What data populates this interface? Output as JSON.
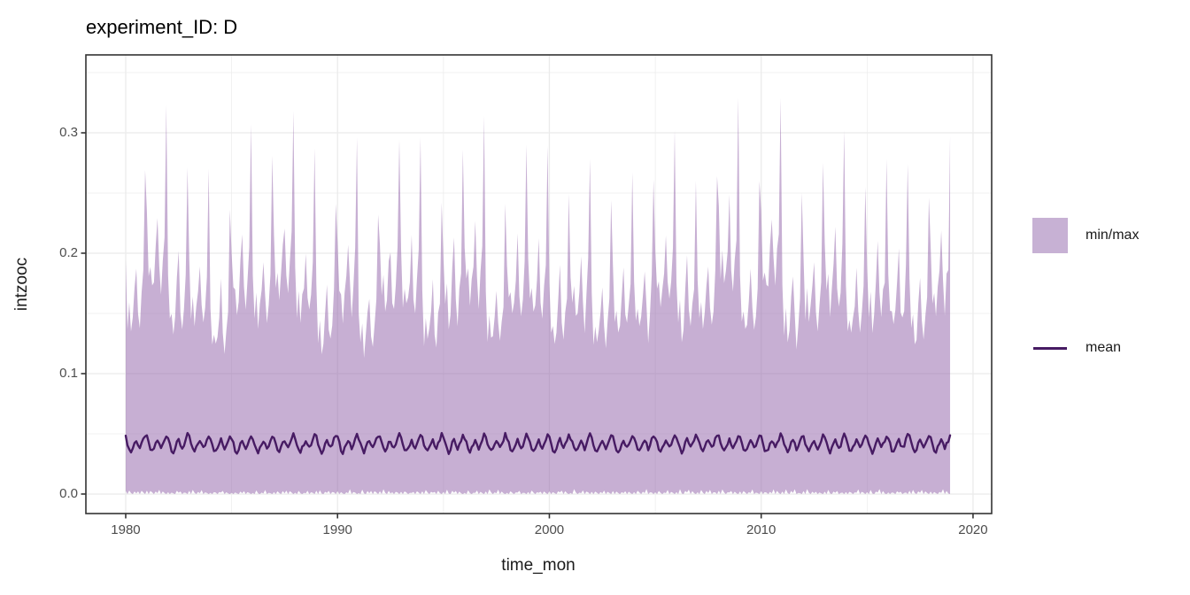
{
  "title": "experiment_ID: D",
  "x_axis": {
    "label": "time_mon"
  },
  "y_axis": {
    "label": "intzooc"
  },
  "legend": {
    "position": "right",
    "items": [
      {
        "label": "min/max",
        "type": "fill",
        "color": "#c7b1d4"
      },
      {
        "label": "mean",
        "type": "line",
        "color": "#471b63"
      }
    ]
  },
  "chart_data": {
    "type": "area",
    "subtype": "ribbon-minmax-with-mean-line",
    "title": "experiment_ID: D",
    "xlabel": "time_mon",
    "ylabel": "intzooc",
    "x_domain": [
      1978.12,
      2020.88
    ],
    "y_domain": [
      -0.0162,
      0.3647
    ],
    "grid": "on",
    "legend_position": "right",
    "x_ticks": [
      {
        "v": 1980,
        "label": "1980"
      },
      {
        "v": 1990,
        "label": "1990"
      },
      {
        "v": 2000,
        "label": "2000"
      },
      {
        "v": 2010,
        "label": "2010"
      },
      {
        "v": 2020,
        "label": "2020"
      }
    ],
    "y_ticks": [
      {
        "v": 0.0,
        "label": "0.0"
      },
      {
        "v": 0.1,
        "label": "0.1"
      },
      {
        "v": 0.2,
        "label": "0.2"
      },
      {
        "v": 0.3,
        "label": "0.3"
      }
    ],
    "x_grid_minor": [
      1985,
      1995,
      2005,
      2015
    ],
    "y_grid_minor": [
      0.05,
      0.15,
      0.25,
      0.35
    ],
    "colors": {
      "ribbon_fill_rgba": "rgba(144,96,168,0.5)",
      "ribbon_flat": "#c7b1d4",
      "mean_line": "#471b63",
      "grid": "#ebebeb",
      "panel_border": "#333333",
      "tick_text": "#4d4d4d"
    },
    "time_resolution": "monthly",
    "series": {
      "minmax": {
        "name": "min/max",
        "year_start": 1980,
        "year_end": 2018,
        "annual_peak_max": [
          0.269,
          0.323,
          0.271,
          0.27,
          0.236,
          0.307,
          0.281,
          0.318,
          0.287,
          0.241,
          0.296,
          0.232,
          0.294,
          0.296,
          0.242,
          0.286,
          0.314,
          0.241,
          0.29,
          0.289,
          0.249,
          0.278,
          0.244,
          0.267,
          0.261,
          0.302,
          0.26,
          0.264,
          0.329,
          0.26,
          0.329,
          0.25,
          0.275,
          0.302,
          0.255,
          0.278,
          0.274,
          0.246,
          0.297
        ],
        "monthly_max_shape": [
          0.7,
          0.55,
          0.6,
          0.52,
          0.56,
          0.64,
          0.74,
          0.58,
          0.52,
          0.6,
          0.68,
          1.0
        ],
        "monthly_min_shape": [
          0.002,
          0.0,
          0.003,
          0.001,
          0.0,
          0.002,
          0.001,
          0.003,
          0.0,
          0.002,
          0.001,
          0.0
        ],
        "typical_max_trough": 0.15,
        "overall_max": 0.329
      },
      "mean": {
        "name": "mean",
        "monthly_shape": [
          0.047,
          0.042,
          0.037,
          0.035,
          0.038,
          0.042,
          0.045,
          0.041,
          0.038,
          0.041,
          0.045,
          0.049
        ],
        "approx_range": [
          0.035,
          0.049
        ]
      }
    }
  }
}
